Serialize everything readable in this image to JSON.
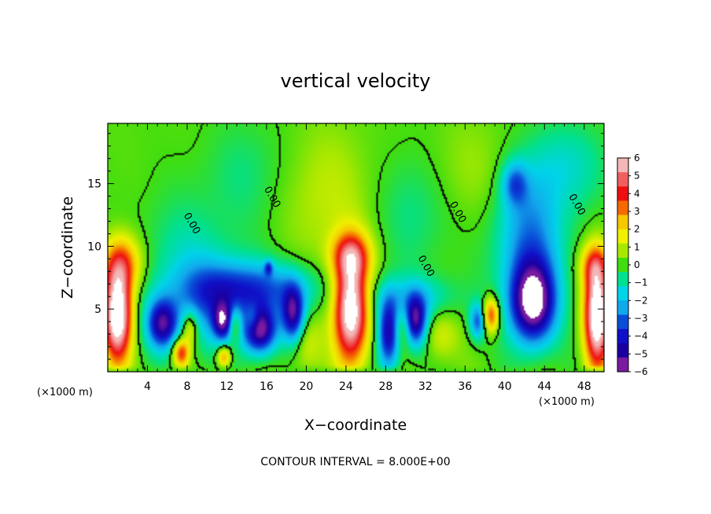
{
  "chart_data": {
    "type": "heatmap",
    "title": "vertical velocity",
    "xlabel": "X−coordinate",
    "ylabel": "Z−coordinate",
    "x_units": "(×1000 m)",
    "y_units": "(×1000 m)",
    "xlim": [
      0,
      50
    ],
    "ylim": [
      0,
      19.8
    ],
    "x_ticks": [
      4,
      8,
      12,
      16,
      20,
      24,
      28,
      32,
      36,
      40,
      44,
      48
    ],
    "y_ticks": [
      5,
      10,
      15
    ],
    "footnote": "CONTOUR INTERVAL = 8.000E+00",
    "colorbar": {
      "levels": [
        6,
        5,
        4,
        3,
        2,
        1,
        0,
        -1,
        -2,
        -3,
        -4,
        -5,
        -6
      ],
      "labels": [
        "6",
        "5",
        "4",
        "3",
        "2",
        "1",
        "0",
        "−1",
        "−2",
        "−3",
        "−4",
        "−5",
        "−6"
      ],
      "colors": [
        "#f4b6b6",
        "#f06060",
        "#ee1010",
        "#f56a00",
        "#f5c800",
        "#f0f000",
        "#a8e800",
        "#40dd10",
        "#00e090",
        "#00d4e8",
        "#12a8ec",
        "#0a4ed8",
        "#1010c8",
        "#1a00a0",
        "#7a1aa0"
      ]
    },
    "contour_labels": [
      {
        "text": "0.00",
        "x": 8.2,
        "y": 11.7
      },
      {
        "text": "0.00",
        "x": 16.3,
        "y": 13.8
      },
      {
        "text": "0.00",
        "x": 31.8,
        "y": 8.3
      },
      {
        "text": "0.00",
        "x": 35.0,
        "y": 12.6
      },
      {
        "text": "0.00",
        "x": 47.0,
        "y": 13.2
      }
    ],
    "features": [
      {
        "sign": "up",
        "x": 1.0,
        "y": 4.5,
        "amp": 9,
        "sx": 1.0,
        "sy": 2.6
      },
      {
        "sign": "up",
        "x": 1.5,
        "y": 8.6,
        "amp": 4,
        "sx": 1.4,
        "sy": 1.6
      },
      {
        "sign": "up",
        "x": 24.5,
        "y": 5.0,
        "amp": 9,
        "sx": 1.2,
        "sy": 3.0
      },
      {
        "sign": "up",
        "x": 24.5,
        "y": 9.3,
        "amp": 4,
        "sx": 1.4,
        "sy": 1.3
      },
      {
        "sign": "up",
        "x": 49.3,
        "y": 4.5,
        "amp": 9,
        "sx": 0.9,
        "sy": 3.0
      },
      {
        "sign": "up",
        "x": 49.0,
        "y": 8.5,
        "amp": 3,
        "sx": 1.0,
        "sy": 1.2
      },
      {
        "sign": "down",
        "x": 42.8,
        "y": 5.5,
        "amp": 8,
        "sx": 1.6,
        "sy": 2.3
      },
      {
        "sign": "down",
        "x": 42.5,
        "y": 11.0,
        "amp": 3.5,
        "sx": 2.5,
        "sy": 4.0
      },
      {
        "sign": "down",
        "x": 41.0,
        "y": 15.0,
        "amp": 3,
        "sx": 0.9,
        "sy": 1.2
      },
      {
        "sign": "down",
        "x": 14.5,
        "y": 6.6,
        "amp": 4,
        "sx": 4.5,
        "sy": 1.5
      },
      {
        "sign": "down",
        "x": 5.5,
        "y": 3.8,
        "amp": 6,
        "sx": 1.1,
        "sy": 1.4
      },
      {
        "sign": "down",
        "x": 11.6,
        "y": 4.0,
        "amp": 5,
        "sx": 0.7,
        "sy": 1.0
      },
      {
        "sign": "down",
        "x": 15.3,
        "y": 3.3,
        "amp": 7,
        "sx": 1.2,
        "sy": 1.3
      },
      {
        "sign": "down",
        "x": 18.7,
        "y": 4.5,
        "amp": 6,
        "sx": 0.8,
        "sy": 1.6
      },
      {
        "sign": "down",
        "x": 28.3,
        "y": 3.0,
        "amp": 6,
        "sx": 0.8,
        "sy": 2.0
      },
      {
        "sign": "down",
        "x": 31.0,
        "y": 4.0,
        "amp": 6,
        "sx": 0.8,
        "sy": 1.4
      },
      {
        "sign": "down",
        "x": 37.3,
        "y": 4.0,
        "amp": 4,
        "sx": 0.6,
        "sy": 1.0
      },
      {
        "sign": "down",
        "x": 30.8,
        "y": 5.8,
        "amp": 2.2,
        "sx": 3.2,
        "sy": 1.3
      },
      {
        "sign": "down",
        "x": 10.5,
        "y": 5.0,
        "amp": 2.2,
        "sx": 3.0,
        "sy": 2.5
      },
      {
        "sign": "up",
        "x": 7.4,
        "y": 1.5,
        "amp": 5,
        "sx": 0.6,
        "sy": 0.8
      },
      {
        "sign": "up",
        "x": 8.3,
        "y": 3.5,
        "amp": 3,
        "sx": 0.6,
        "sy": 1.0
      },
      {
        "sign": "up",
        "x": 12.8,
        "y": 3.8,
        "amp": 3,
        "sx": 0.5,
        "sy": 1.0
      },
      {
        "sign": "up",
        "x": 11.7,
        "y": 1.2,
        "amp": 4,
        "sx": 0.5,
        "sy": 0.6
      },
      {
        "sign": "up",
        "x": 14.6,
        "y": 4.2,
        "amp": 2,
        "sx": 0.5,
        "sy": 0.8
      },
      {
        "sign": "up",
        "x": 38.6,
        "y": 4.5,
        "amp": 5,
        "sx": 0.6,
        "sy": 1.0
      },
      {
        "sign": "up",
        "x": 29.7,
        "y": 3.6,
        "amp": 2,
        "sx": 0.6,
        "sy": 1.2
      },
      {
        "sign": "up",
        "x": 33.5,
        "y": 3.0,
        "amp": 1.5,
        "sx": 1.2,
        "sy": 1.5
      },
      {
        "sign": "up",
        "x": 19.8,
        "y": 2.2,
        "amp": 1.5,
        "sx": 1.2,
        "sy": 1.6
      },
      {
        "sign": "up",
        "x": 22.0,
        "y": 14.0,
        "amp": 1.2,
        "sx": 3.0,
        "sy": 4.0
      },
      {
        "sign": "up",
        "x": 37.0,
        "y": 16.0,
        "amp": 0.8,
        "sx": 4.0,
        "sy": 3.0
      },
      {
        "sign": "down",
        "x": 16.2,
        "y": 8.3,
        "amp": 3,
        "sx": 0.3,
        "sy": 0.4
      },
      {
        "sign": "down",
        "x": 8.0,
        "y": 9.0,
        "amp": 1.4,
        "sx": 3.5,
        "sy": 3.5
      },
      {
        "sign": "down",
        "x": 46.5,
        "y": 16.5,
        "amp": 1.5,
        "sx": 3.0,
        "sy": 2.5
      },
      {
        "sign": "down",
        "x": 14.0,
        "y": 16.0,
        "amp": 0.9,
        "sx": 3.0,
        "sy": 3.0
      },
      {
        "sign": "down",
        "x": 31.0,
        "y": 13.0,
        "amp": 1.2,
        "sx": 2.5,
        "sy": 3.5
      }
    ]
  }
}
